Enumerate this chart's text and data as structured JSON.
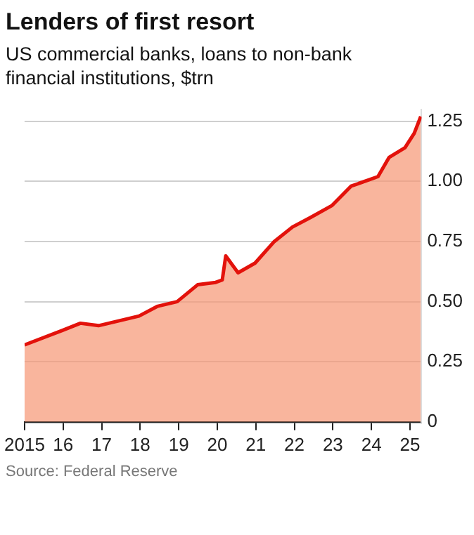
{
  "chart_data": {
    "type": "area",
    "title": "Lenders of first resort",
    "subtitle": "US commercial banks, loans to non-bank financial institutions, $trn",
    "x": [
      2015.0,
      2015.98,
      2016.45,
      2016.92,
      2017.97,
      2018.44,
      2018.96,
      2019.49,
      2019.96,
      2020.13,
      2020.22,
      2020.54,
      2020.98,
      2021.48,
      2021.95,
      2022.42,
      2022.98,
      2023.47,
      2024.17,
      2024.46,
      2024.87,
      2025.11,
      2025.28
    ],
    "series": [
      {
        "color": "#e3120b",
        "values": [
          0.32,
          0.38,
          0.41,
          0.4,
          0.44,
          0.48,
          0.5,
          0.57,
          0.58,
          0.59,
          0.69,
          0.62,
          0.66,
          0.75,
          0.81,
          0.85,
          0.9,
          0.98,
          1.02,
          1.1,
          1.14,
          1.2,
          1.27
        ]
      }
    ],
    "xlim": [
      2015,
      2025.3
    ],
    "xticks": [
      2015,
      {
        "value": 2016,
        "label": "16"
      },
      {
        "value": 2017,
        "label": "17"
      },
      {
        "value": 2018,
        "label": "18"
      },
      {
        "value": 2019,
        "label": "19"
      },
      {
        "value": 2020,
        "label": "20"
      },
      {
        "value": 2021,
        "label": "21"
      },
      {
        "value": 2022,
        "label": "22"
      },
      {
        "value": 2023,
        "label": "23"
      },
      {
        "value": 2024,
        "label": "24"
      },
      {
        "value": 2025,
        "label": "25"
      }
    ],
    "ylim": [
      0,
      1.3
    ],
    "yticks": [
      0,
      0.25,
      {
        "value": 0.5,
        "label": "0.50"
      },
      0.75,
      {
        "value": 1,
        "label": "1.00"
      },
      1.25
    ],
    "grid": "y",
    "annotations": [
      "Source: Federal Reserve"
    ]
  }
}
